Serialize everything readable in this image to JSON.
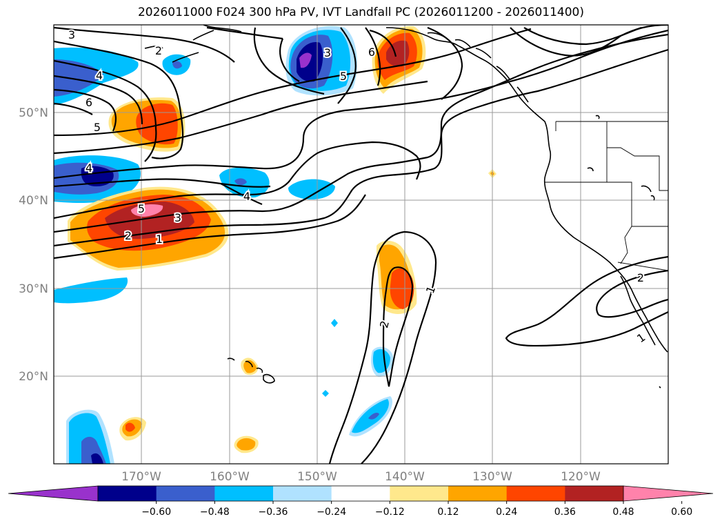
{
  "title": "2026011000 F024 300 hPa PV, IVT Landfall PC (2026011200 - 2026011400)",
  "lat_labels": [
    "50°N",
    "40°N",
    "30°N",
    "20°N"
  ],
  "lon_labels": [
    "170°W",
    "160°W",
    "150°W",
    "140°W",
    "130°W",
    "120°W"
  ],
  "colorbar": {
    "colors": [
      "#9932cc",
      "#00008b",
      "#3a5fcd",
      "#00bfff",
      "#b0e2ff",
      "#ffffff",
      "#ffe88c",
      "#ffa500",
      "#ff4500",
      "#b22222",
      "#ff82ab"
    ],
    "tick_labels": [
      "−0.60",
      "−0.48",
      "−0.36",
      "−0.24",
      "−0.12",
      "0.12",
      "0.24",
      "0.36",
      "0.48",
      "0.60"
    ]
  },
  "contour_labels": {
    "c3_nw": "3",
    "c2_n": "2",
    "c4_w": "4",
    "c6_w": "6",
    "c5_w": "5",
    "c4_w2": "4",
    "c5_sw": "5",
    "c3_sw": "3",
    "c2_sw": "2",
    "c1_sw": "1",
    "c4_mid": "4",
    "c3_n": "3",
    "c5_n": "5",
    "c6_ne": "6",
    "c1_e": "1",
    "c2_e": "2",
    "c2_se": "2",
    "c1_se": "1"
  }
}
